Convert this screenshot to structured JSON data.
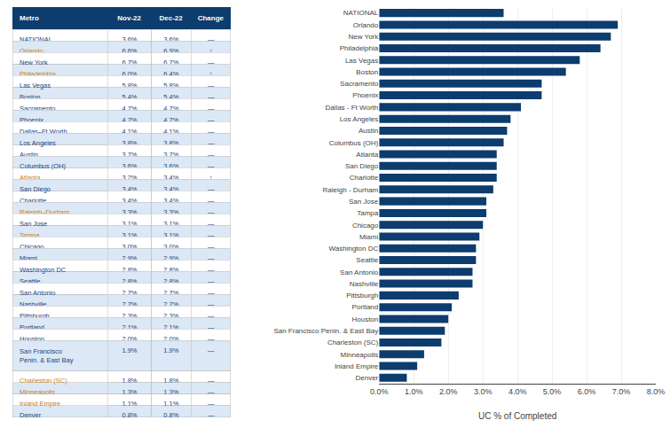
{
  "chart_data": [
    {
      "type": "table",
      "color": "#0d3c6e",
      "columns": [
        "Metro",
        "Nov-22",
        "Dec-22",
        "Change"
      ],
      "rows": [
        [
          "NATIONAL",
          "3.6%",
          "3.6%",
          "—"
        ],
        [
          "Orlando",
          "6.6%",
          "6.9%",
          "↑"
        ],
        [
          "New York",
          "6.7%",
          "6.7%",
          "—"
        ],
        [
          "Philadelphia",
          "6.0%",
          "6.4%",
          "↑"
        ],
        [
          "Las Vegas",
          "5.8%",
          "5.8%",
          "—"
        ],
        [
          "Boston",
          "5.4%",
          "5.4%",
          "—"
        ],
        [
          "Sacramento",
          "4.7%",
          "4.7%",
          "—"
        ],
        [
          "Phoenix",
          "4.7%",
          "4.7%",
          "—"
        ],
        [
          "Dallas–Ft Worth",
          "4.1%",
          "4.1%",
          "—"
        ],
        [
          "Los Angeles",
          "3.8%",
          "3.8%",
          "—"
        ],
        [
          "Austin",
          "3.7%",
          "3.7%",
          "—"
        ],
        [
          "Columbus (OH)",
          "3.6%",
          "3.6%",
          "—"
        ],
        [
          "Atlanta",
          "3.2%",
          "3.4%",
          "↑"
        ],
        [
          "San Diego",
          "3.4%",
          "3.4%",
          "—"
        ],
        [
          "Charlotte",
          "3.4%",
          "3.4%",
          "—"
        ],
        [
          "Raleigh–Durham",
          "3.3%",
          "3.3%",
          "—"
        ],
        [
          "San Jose",
          "3.1%",
          "3.1%",
          "—"
        ],
        [
          "Tampa",
          "3.1%",
          "3.1%",
          "—"
        ],
        [
          "Chicago",
          "3.0%",
          "3.0%",
          "—"
        ],
        [
          "Miami",
          "2.9%",
          "2.9%",
          "—"
        ],
        [
          "Washington DC",
          "2.8%",
          "2.8%",
          "—"
        ],
        [
          "Seattle",
          "2.8%",
          "2.8%",
          "—"
        ],
        [
          "San Antonio",
          "2.7%",
          "2.7%",
          "—"
        ],
        [
          "Nashville",
          "2.7%",
          "2.7%",
          "—"
        ],
        [
          "Pittsburgh",
          "2.3%",
          "2.3%",
          "—"
        ],
        [
          "Portland",
          "2.1%",
          "2.1%",
          "—"
        ],
        [
          "Houston",
          "2.0%",
          "2.0%",
          "—"
        ],
        [
          "San Francisco\nPenin. & East Bay",
          "1.9%",
          "1.9%",
          "—"
        ],
        [
          "Charleston (SC)",
          "1.8%",
          "1.8%",
          "—"
        ],
        [
          "Minneapolis",
          "1.3%",
          "1.3%",
          "—"
        ],
        [
          "Inland Empire",
          "1.1%",
          "1.1%",
          "—"
        ],
        [
          "Denver",
          "0.8%",
          "0.8%",
          "—"
        ]
      ],
      "colors": [
        "#1a4480",
        "#c87d1e",
        "#1a4480",
        "#c87d1e",
        "#1a4480",
        "#1a4480",
        "#1a4480",
        "#1a4480",
        "#1a4480",
        "#1a4480",
        "#1a4480",
        "#1a4480",
        "#c87d1e",
        "#1a4480",
        "#1a4480",
        "#c87d1e",
        "#1a4480",
        "#c87d1e",
        "#1a4480",
        "#1a4480",
        "#1a4480",
        "#1a4480",
        "#1a4480",
        "#1a4480",
        "#1a4480",
        "#1a4480",
        "#1a4480",
        "#1a4480",
        "#c87d1e",
        "#c87d1e",
        "#c87d1e",
        "#1a4480"
      ]
    },
    {
      "type": "bar",
      "orientation": "horizontal",
      "categories": [
        "NATIONAL",
        "Orlando",
        "New York",
        "Philadelphia",
        "Las Vegas",
        "Boston",
        "Sacramento",
        "Phoenix",
        "Dallas - Ft Worth",
        "Los Angeles",
        "Austin",
        "Columbus (OH)",
        "Atlanta",
        "San Diego",
        "Charlotte",
        "Raleigh - Durham",
        "San Jose",
        "Tampa",
        "Chicago",
        "Miami",
        "Washington DC",
        "Seattle",
        "San Antonio",
        "Nashville",
        "Pittsburgh",
        "Portland",
        "Houston",
        "San Francisco Penin. & East Bay",
        "Charleston (SC)",
        "Minneapolis",
        "Inland Empire",
        "Denver"
      ],
      "values": [
        3.6,
        6.9,
        6.7,
        6.4,
        5.8,
        5.4,
        4.7,
        4.7,
        4.1,
        3.8,
        3.7,
        3.6,
        3.4,
        3.4,
        3.4,
        3.3,
        3.1,
        3.1,
        3.0,
        2.9,
        2.8,
        2.8,
        2.7,
        2.7,
        2.3,
        2.1,
        2.0,
        1.9,
        1.8,
        1.3,
        1.1,
        0.8
      ],
      "color": "#0d3c6e",
      "xlabel": "UC % of Completed",
      "xlim": [
        0,
        8.0
      ],
      "xticks": [
        {
          "value": 0.0,
          "label": "0.0%"
        },
        {
          "value": 1.0,
          "label": "1.0%"
        },
        {
          "value": 2.0,
          "label": "2.0%"
        },
        {
          "value": 3.0,
          "label": "3.0%"
        },
        {
          "value": 4.0,
          "label": "4.0%"
        },
        {
          "value": 5.0,
          "label": "5.0%"
        },
        {
          "value": 6.0,
          "label": "6.0%"
        },
        {
          "value": 7.0,
          "label": "7.0%"
        },
        {
          "value": 8.0,
          "label": "8.0%"
        }
      ],
      "grid": true
    }
  ]
}
